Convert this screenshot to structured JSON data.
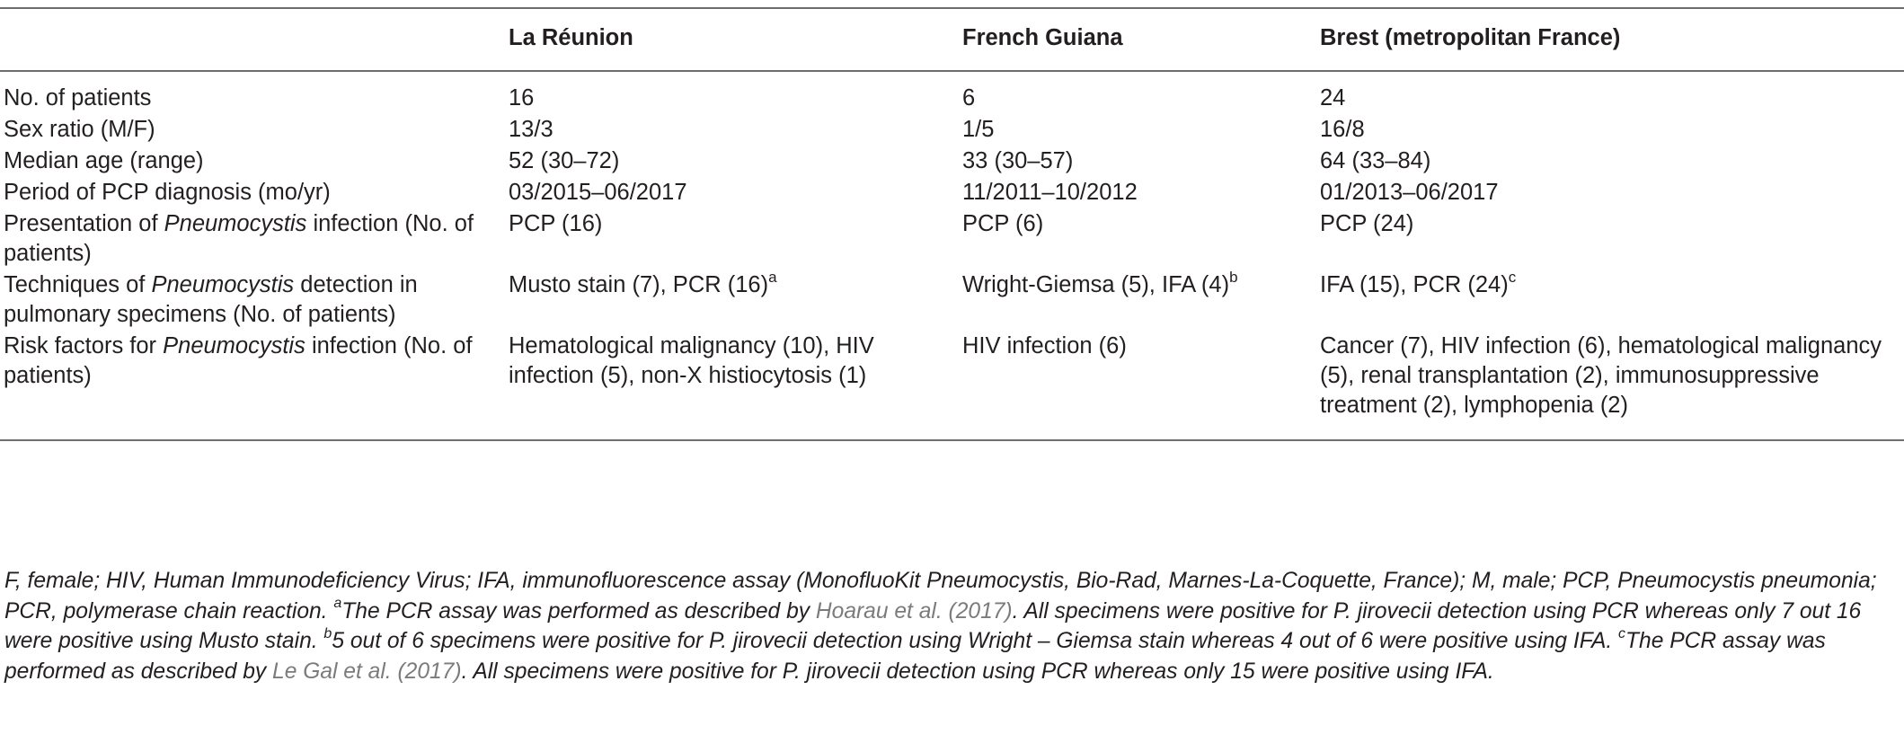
{
  "table": {
    "headers": [
      "",
      "La Réunion",
      "French Guiana",
      "Brest (metropolitan France)"
    ],
    "rows": [
      {
        "label_pre": "No. of patients",
        "label_em": "",
        "label_post": "",
        "cells": [
          {
            "text": "16",
            "sup": ""
          },
          {
            "text": "6",
            "sup": ""
          },
          {
            "text": "24",
            "sup": ""
          }
        ]
      },
      {
        "label_pre": "Sex ratio (M/F)",
        "label_em": "",
        "label_post": "",
        "cells": [
          {
            "text": "13/3",
            "sup": ""
          },
          {
            "text": "1/5",
            "sup": ""
          },
          {
            "text": "16/8",
            "sup": ""
          }
        ]
      },
      {
        "label_pre": "Median age (range)",
        "label_em": "",
        "label_post": "",
        "cells": [
          {
            "text": "52 (30–72)",
            "sup": ""
          },
          {
            "text": "33 (30–57)",
            "sup": ""
          },
          {
            "text": "64 (33–84)",
            "sup": ""
          }
        ]
      },
      {
        "label_pre": "Period of PCP diagnosis (mo/yr)",
        "label_em": "",
        "label_post": "",
        "cells": [
          {
            "text": "03/2015–06/2017",
            "sup": ""
          },
          {
            "text": "11/2011–10/2012",
            "sup": ""
          },
          {
            "text": "01/2013–06/2017",
            "sup": ""
          }
        ]
      },
      {
        "label_pre": "Presentation of ",
        "label_em": "Pneumocystis",
        "label_post": " infection (No. of patients)",
        "cells": [
          {
            "text": "PCP (16)",
            "sup": ""
          },
          {
            "text": "PCP (6)",
            "sup": ""
          },
          {
            "text": "PCP (24)",
            "sup": ""
          }
        ]
      },
      {
        "label_pre": "Techniques of ",
        "label_em": "Pneumocystis",
        "label_post": " detection in pulmonary specimens (No. of patients)",
        "cells": [
          {
            "text": "Musto stain (7), PCR (16)",
            "sup": "a"
          },
          {
            "text": "Wright-Giemsa (5), IFA (4)",
            "sup": "b"
          },
          {
            "text": "IFA (15), PCR (24)",
            "sup": "c"
          }
        ]
      },
      {
        "label_pre": "Risk factors for ",
        "label_em": "Pneumocystis",
        "label_post": " infection (No. of patients)",
        "cells": [
          {
            "text": "Hematological malignancy (10), HIV infection (5), non-X histiocytosis (1)",
            "sup": ""
          },
          {
            "text": "HIV infection (6)",
            "sup": ""
          },
          {
            "text": "Cancer (7), HIV infection (6), hematological malignancy (5), renal transplantation (2), immunosuppressive treatment (2), lymphopenia (2)",
            "sup": ""
          }
        ]
      }
    ]
  },
  "footnote": {
    "p1": "F, female; HIV, Human Immunodeficiency Virus; IFA, immunofluorescence assay (MonofluoKit Pneumocystis, Bio-Rad, Marnes-La-Coquette, France); M, male; PCP, Pneumocystis pneumonia; PCR, polymerase chain reaction. ",
    "sup_a": "a",
    "p2": "The PCR assay was performed as described by ",
    "ref1": "Hoarau et al. (2017)",
    "p3": ". All specimens were positive for P. jirovecii detection using PCR whereas only 7 out 16 were positive using Musto stain. ",
    "sup_b": "b",
    "p4": "5 out of 6 specimens were positive for P. jirovecii detection using Wright – Giemsa stain whereas 4 out of 6 were positive using IFA. ",
    "sup_c": "c",
    "p5": "The PCR assay was performed as described by ",
    "ref2": "Le Gal et al. (2017)",
    "p6": ". All specimens were positive for P. jirovecii detection using PCR whereas only 15 were positive using IFA."
  },
  "colors": {
    "text": "#231f20",
    "rule": "#6d6e71",
    "reference_link": "#7b7b7b"
  }
}
